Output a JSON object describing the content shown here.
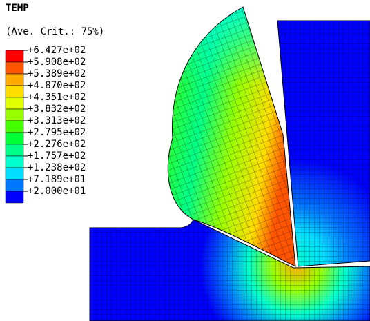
{
  "legend": {
    "title": "TEMP",
    "subtitle": "(Ave. Crit.: 75%)",
    "labels": [
      "+6.427e+02",
      "+5.908e+02",
      "+5.389e+02",
      "+4.870e+02",
      "+4.351e+02",
      "+3.832e+02",
      "+3.313e+02",
      "+2.795e+02",
      "+2.276e+02",
      "+1.757e+02",
      "+1.238e+02",
      "+7.189e+01",
      "+2.000e+01"
    ],
    "colors": [
      "#ff0000",
      "#ff5500",
      "#ffaa00",
      "#ffdd00",
      "#e0ff00",
      "#99ff00",
      "#44ff00",
      "#00ff33",
      "#00ff88",
      "#00ffcc",
      "#00ddff",
      "#0077ff",
      "#0000ff"
    ]
  }
}
